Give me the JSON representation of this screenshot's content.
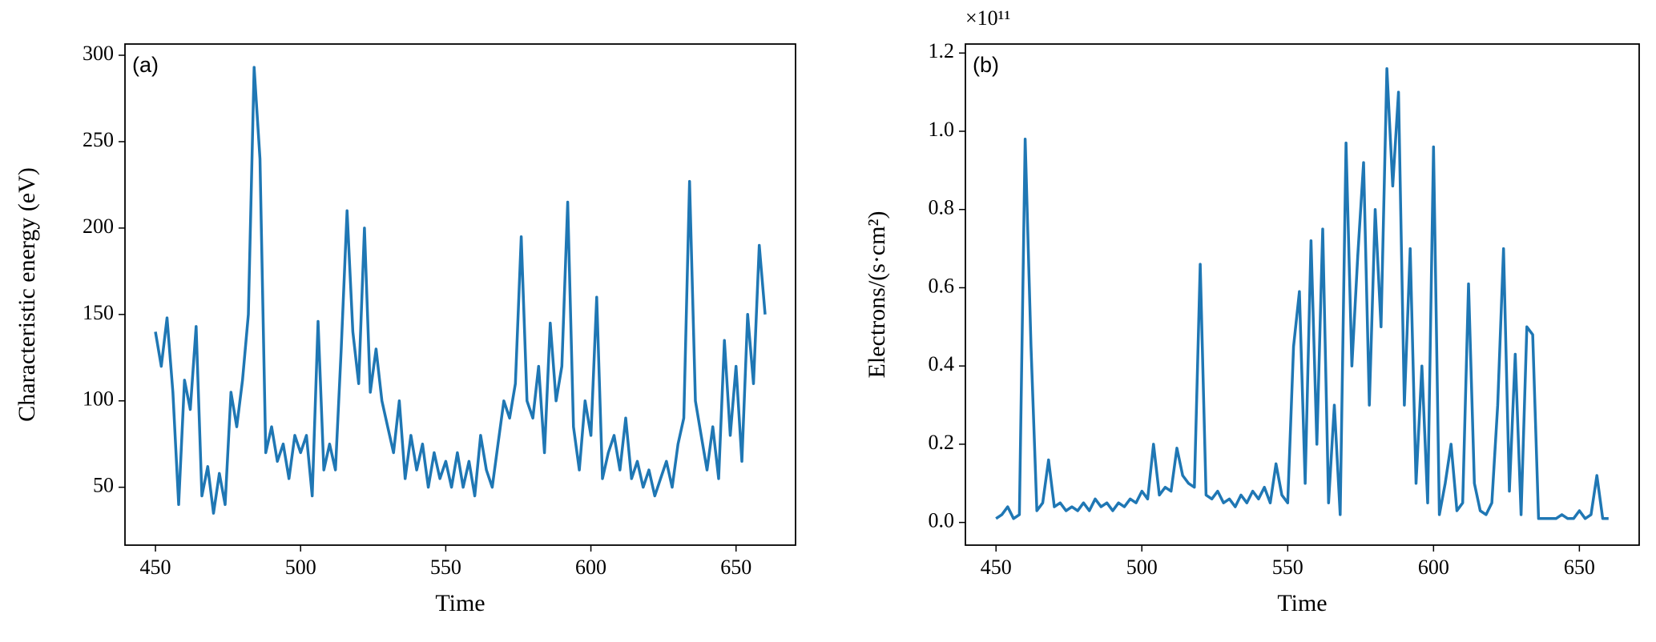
{
  "chart_data": [
    {
      "type": "line",
      "annotation": "(a)",
      "xlabel": "Time",
      "ylabel": "Characteristic energy (eV)",
      "xlim": [
        439.5,
        670.5
      ],
      "xticks": [
        450,
        500,
        550,
        600,
        650
      ],
      "ylim": [
        16.5,
        306.5
      ],
      "yticks": [
        50,
        100,
        150,
        200,
        250,
        300
      ],
      "series": [
        {
          "color": "#1f77b4",
          "x": [
            450,
            452,
            454,
            456,
            458,
            460,
            462,
            464,
            466,
            468,
            470,
            472,
            474,
            476,
            478,
            480,
            482,
            484,
            486,
            488,
            490,
            492,
            494,
            496,
            498,
            500,
            502,
            504,
            506,
            508,
            510,
            512,
            514,
            516,
            518,
            520,
            522,
            524,
            526,
            528,
            530,
            532,
            534,
            536,
            538,
            540,
            542,
            544,
            546,
            548,
            550,
            552,
            554,
            556,
            558,
            560,
            562,
            564,
            566,
            568,
            570,
            572,
            574,
            576,
            578,
            580,
            582,
            584,
            586,
            588,
            590,
            592,
            594,
            596,
            598,
            600,
            602,
            604,
            606,
            608,
            610,
            612,
            614,
            616,
            618,
            620,
            622,
            624,
            626,
            628,
            630,
            632,
            634,
            636,
            638,
            640,
            642,
            644,
            646,
            648,
            650,
            652,
            654,
            656,
            658,
            660
          ],
          "values": [
            140,
            120,
            148,
            105,
            40,
            112,
            95,
            143,
            45,
            62,
            35,
            58,
            40,
            105,
            85,
            112,
            150,
            293,
            240,
            70,
            85,
            65,
            75,
            55,
            80,
            70,
            80,
            45,
            146,
            60,
            75,
            60,
            130,
            210,
            140,
            110,
            200,
            105,
            130,
            100,
            85,
            70,
            100,
            55,
            80,
            60,
            75,
            50,
            70,
            55,
            65,
            50,
            70,
            50,
            65,
            45,
            80,
            60,
            50,
            75,
            100,
            90,
            110,
            195,
            100,
            90,
            120,
            70,
            145,
            100,
            120,
            215,
            85,
            60,
            100,
            80,
            160,
            55,
            70,
            80,
            60,
            90,
            55,
            65,
            50,
            60,
            45,
            55,
            65,
            50,
            75,
            90,
            227,
            100,
            80,
            60,
            85,
            55,
            135,
            80,
            120,
            65,
            150,
            110,
            190,
            150
          ]
        }
      ]
    },
    {
      "type": "line",
      "annotation": "(b)",
      "xlabel": "Time",
      "ylabel": "Electrons/(s·cm²)",
      "offset_label": "×10¹¹",
      "xlim": [
        439.5,
        670.5
      ],
      "xticks": [
        450,
        500,
        550,
        600,
        650
      ],
      "ylim": [
        -0.058,
        1.223
      ],
      "yticks": [
        {
          "value": 0,
          "label": "0.0"
        },
        {
          "value": 0.2,
          "label": "0.2"
        },
        {
          "value": 0.4,
          "label": "0.4"
        },
        {
          "value": 0.6,
          "label": "0.6"
        },
        {
          "value": 0.8,
          "label": "0.8"
        },
        {
          "value": 1.0,
          "label": "1.0"
        },
        {
          "value": 1.2,
          "label": "1.2"
        }
      ],
      "series": [
        {
          "color": "#1f77b4",
          "x": [
            450,
            452,
            454,
            456,
            458,
            460,
            462,
            464,
            466,
            468,
            470,
            472,
            474,
            476,
            478,
            480,
            482,
            484,
            486,
            488,
            490,
            492,
            494,
            496,
            498,
            500,
            502,
            504,
            506,
            508,
            510,
            512,
            514,
            516,
            518,
            520,
            522,
            524,
            526,
            528,
            530,
            532,
            534,
            536,
            538,
            540,
            542,
            544,
            546,
            548,
            550,
            552,
            554,
            556,
            558,
            560,
            562,
            564,
            566,
            568,
            570,
            572,
            574,
            576,
            578,
            580,
            582,
            584,
            586,
            588,
            590,
            592,
            594,
            596,
            598,
            600,
            602,
            604,
            606,
            608,
            610,
            612,
            614,
            616,
            618,
            620,
            622,
            624,
            626,
            628,
            630,
            632,
            634,
            636,
            638,
            640,
            642,
            644,
            646,
            648,
            650,
            652,
            654,
            656,
            658,
            660
          ],
          "values": [
            0.01,
            0.02,
            0.04,
            0.01,
            0.02,
            0.98,
            0.45,
            0.03,
            0.05,
            0.16,
            0.04,
            0.05,
            0.03,
            0.04,
            0.03,
            0.05,
            0.03,
            0.06,
            0.04,
            0.05,
            0.03,
            0.05,
            0.04,
            0.06,
            0.05,
            0.08,
            0.06,
            0.2,
            0.07,
            0.09,
            0.08,
            0.19,
            0.12,
            0.1,
            0.09,
            0.66,
            0.07,
            0.06,
            0.08,
            0.05,
            0.06,
            0.04,
            0.07,
            0.05,
            0.08,
            0.06,
            0.09,
            0.05,
            0.15,
            0.07,
            0.05,
            0.45,
            0.59,
            0.1,
            0.72,
            0.2,
            0.75,
            0.05,
            0.3,
            0.02,
            0.97,
            0.4,
            0.68,
            0.92,
            0.3,
            0.8,
            0.5,
            1.16,
            0.86,
            1.1,
            0.3,
            0.7,
            0.1,
            0.4,
            0.05,
            0.96,
            0.02,
            0.1,
            0.2,
            0.03,
            0.05,
            0.61,
            0.1,
            0.03,
            0.02,
            0.05,
            0.3,
            0.7,
            0.08,
            0.43,
            0.02,
            0.5,
            0.48,
            0.01,
            0.01,
            0.01,
            0.01,
            0.02,
            0.01,
            0.01,
            0.03,
            0.01,
            0.02,
            0.12,
            0.01,
            0.01
          ]
        }
      ]
    }
  ]
}
